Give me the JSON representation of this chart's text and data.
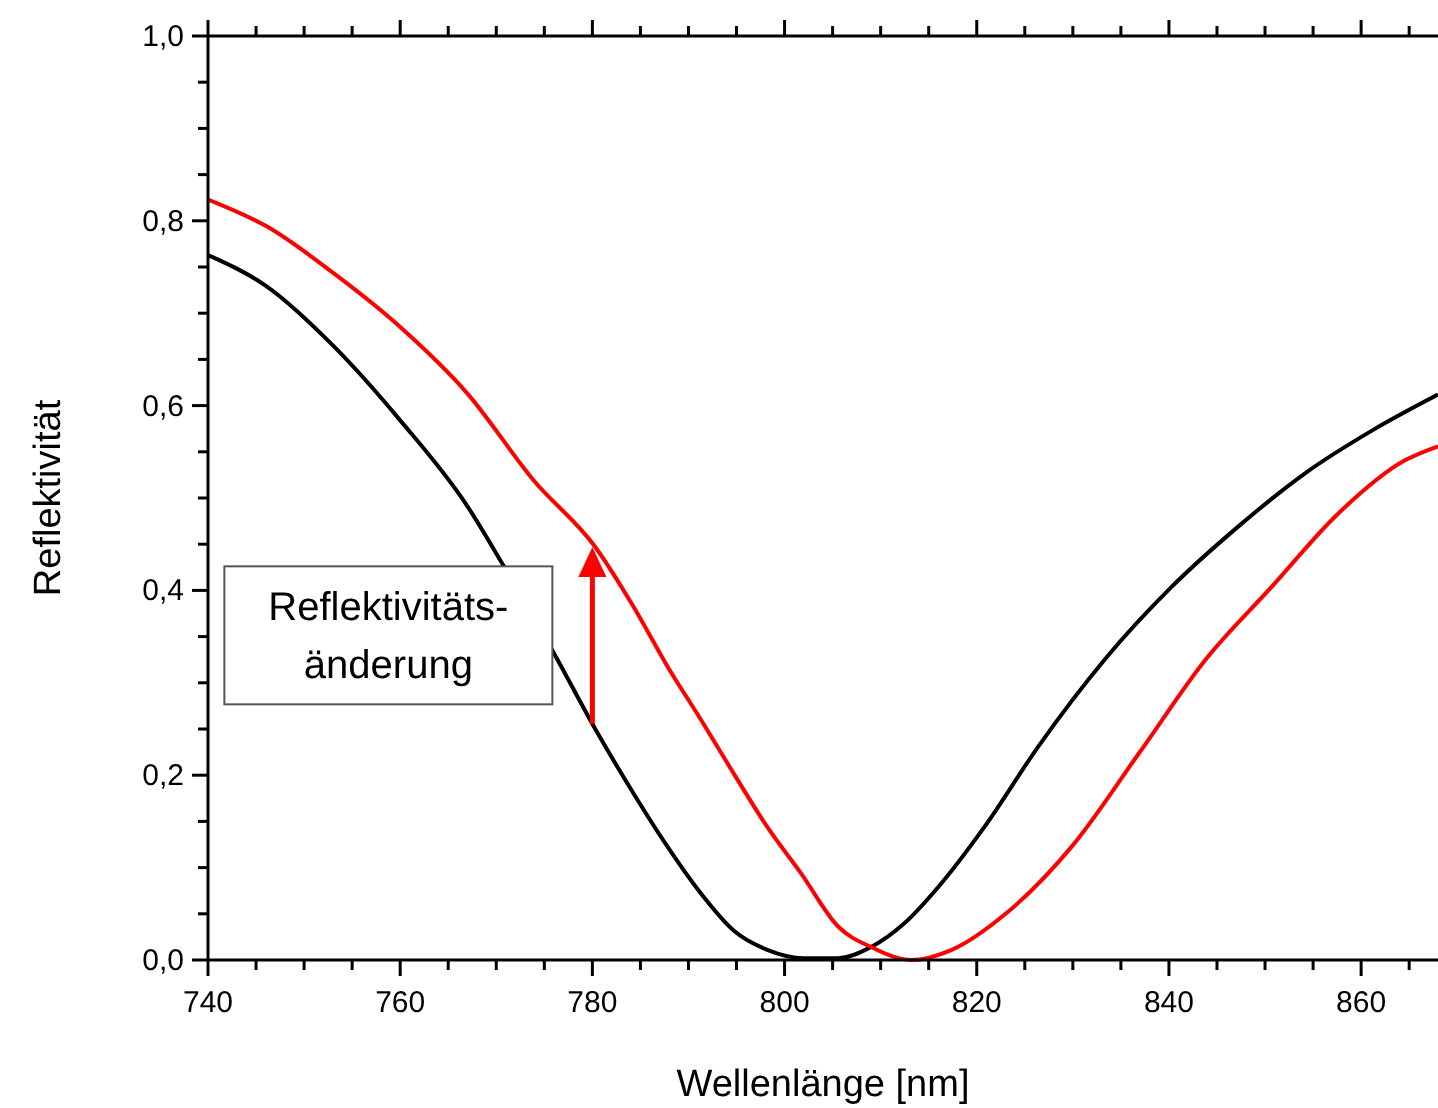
{
  "chart_data": {
    "type": "line",
    "xlabel": "Wellenlänge [nm]",
    "ylabel": "Reflektivität",
    "xlim": [
      740,
      868
    ],
    "ylim": [
      0,
      1
    ],
    "xticks": [
      740,
      {
        "value": 745,
        "label": null
      },
      {
        "value": 750,
        "label": null
      },
      {
        "value": 755,
        "label": null
      },
      760,
      {
        "value": 765,
        "label": null
      },
      {
        "value": 770,
        "label": null
      },
      {
        "value": 775,
        "label": null
      },
      780,
      {
        "value": 785,
        "label": null
      },
      {
        "value": 790,
        "label": null
      },
      {
        "value": 795,
        "label": null
      },
      800,
      {
        "value": 805,
        "label": null
      },
      {
        "value": 810,
        "label": null
      },
      {
        "value": 815,
        "label": null
      },
      820,
      {
        "value": 825,
        "label": null
      },
      {
        "value": 830,
        "label": null
      },
      {
        "value": 835,
        "label": null
      },
      840,
      {
        "value": 845,
        "label": null
      },
      {
        "value": 850,
        "label": null
      },
      {
        "value": 855,
        "label": null
      },
      860,
      {
        "value": 865,
        "label": null
      }
    ],
    "yticks": [
      {
        "value": 0,
        "label": "0,0"
      },
      {
        "value": 0.05,
        "label": null
      },
      {
        "value": 0.1,
        "label": null
      },
      {
        "value": 0.15,
        "label": null
      },
      {
        "value": 0.2,
        "label": "0,2"
      },
      {
        "value": 0.25,
        "label": null
      },
      {
        "value": 0.3,
        "label": null
      },
      {
        "value": 0.35,
        "label": null
      },
      {
        "value": 0.4,
        "label": "0,4"
      },
      {
        "value": 0.45,
        "label": null
      },
      {
        "value": 0.5,
        "label": null
      },
      {
        "value": 0.55,
        "label": null
      },
      {
        "value": 0.6,
        "label": "0,6"
      },
      {
        "value": 0.65,
        "label": null
      },
      {
        "value": 0.7,
        "label": null
      },
      {
        "value": 0.75,
        "label": null
      },
      {
        "value": 0.8,
        "label": "0,8"
      },
      {
        "value": 0.85,
        "label": null
      },
      {
        "value": 0.9,
        "label": null
      },
      {
        "value": 0.95,
        "label": null
      },
      {
        "value": 1,
        "label": "1,0"
      }
    ],
    "grid": false,
    "marker": "none",
    "line_style": "solid",
    "series": [
      {
        "color": "#000000",
        "x": [
          740,
          746.1,
          753.1,
          760,
          767,
          770.4,
          776,
          780.3,
          784.3,
          787.8,
          791.3,
          794.7,
          798.2,
          802,
          805.6,
          809,
          812.5,
          816,
          820.8,
          826.4,
          833.3,
          840.3,
          847.2,
          854.2,
          861.3,
          868
        ],
        "values": [
          0.763,
          0.729,
          0.664,
          0.584,
          0.491,
          0.433,
          0.332,
          0.25,
          0.18,
          0.123,
          0.072,
          0.032,
          0.011,
          0.002,
          0.002,
          0.014,
          0.04,
          0.079,
          0.144,
          0.231,
          0.325,
          0.404,
          0.469,
          0.527,
          0.574,
          0.612
        ]
      },
      {
        "color": "#ff0000",
        "x": [
          740,
          746.1,
          753.1,
          760,
          767,
          773.9,
          780.3,
          784.3,
          787.8,
          791.3,
          794.7,
          798.2,
          801.7,
          805.6,
          809,
          813.2,
          817.4,
          823,
          829.9,
          836.9,
          843.8,
          850.7,
          857.6,
          864.6,
          868
        ],
        "values": [
          0.823,
          0.794,
          0.743,
          0.685,
          0.613,
          0.519,
          0.447,
          0.382,
          0.318,
          0.26,
          0.202,
          0.144,
          0.094,
          0.036,
          0.014,
          0,
          0.011,
          0.05,
          0.123,
          0.224,
          0.325,
          0.404,
          0.483,
          0.541,
          0.556
        ]
      }
    ],
    "annotations": [
      {
        "text": "Reflektivitäts-\nänderung",
        "x": 780,
        "y": 0.447
      }
    ]
  }
}
